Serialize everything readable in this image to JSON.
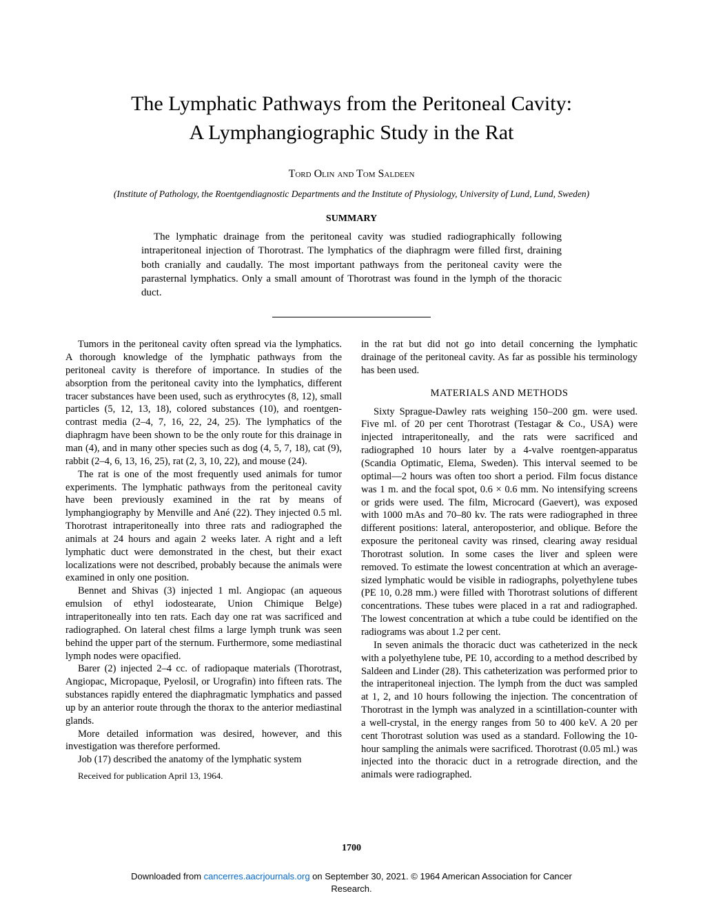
{
  "title_line1": "The Lymphatic Pathways from the Peritoneal Cavity:",
  "title_line2": "A Lymphangiographic Study in the Rat",
  "authors": "Tord Olin and Tom Saldeen",
  "affiliation": "(Institute of Pathology, the Roentgendiagnostic Departments and the Institute of Physiology, University of Lund, Lund, Sweden)",
  "summary_heading": "SUMMARY",
  "summary_text": "The lymphatic drainage from the peritoneal cavity was studied radiographically following intraperitoneal injection of Thorotrast. The lymphatics of the diaphragm were filled first, draining both cranially and caudally. The most important pathways from the peritoneal cavity were the parasternal lymphatics. Only a small amount of Thorotrast was found in the lymph of the thoracic duct.",
  "left_column": {
    "p1": "Tumors in the peritoneal cavity often spread via the lymphatics. A thorough knowledge of the lymphatic pathways from the peritoneal cavity is therefore of importance. In studies of the absorption from the peritoneal cavity into the lymphatics, different tracer substances have been used, such as erythrocytes (8, 12), small particles (5, 12, 13, 18), colored substances (10), and roentgen-contrast media (2–4, 7, 16, 22, 24, 25). The lymphatics of the diaphragm have been shown to be the only route for this drainage in man (4), and in many other species such as dog (4, 5, 7, 18), cat (9), rabbit (2–4, 6, 13, 16, 25), rat (2, 3, 10, 22), and mouse (24).",
    "p2": "The rat is one of the most frequently used animals for tumor experiments. The lymphatic pathways from the peritoneal cavity have been previously examined in the rat by means of lymphangiography by Menville and Ané (22). They injected 0.5 ml. Thorotrast intraperitoneally into three rats and radiographed the animals at 24 hours and again 2 weeks later. A right and a left lymphatic duct were demonstrated in the chest, but their exact localizations were not described, probably because the animals were examined in only one position.",
    "p3": "Bennet and Shivas (3) injected 1 ml. Angiopac (an aqueous emulsion of ethyl iodostearate, Union Chimique Belge) intraperitoneally into ten rats. Each day one rat was sacrificed and radiographed. On lateral chest films a large lymph trunk was seen behind the upper part of the sternum. Furthermore, some mediastinal lymph nodes were opacified.",
    "p4": "Barer (2) injected 2–4 cc. of radiopaque materials (Thorotrast, Angiopac, Micropaque, Pyelosil, or Urografin) into fifteen rats. The substances rapidly entered the diaphragmatic lymphatics and passed up by an anterior route through the thorax to the anterior mediastinal glands.",
    "p5": "More detailed information was desired, however, and this investigation was therefore performed.",
    "p6": "Job (17) described the anatomy of the lymphatic system",
    "received": "Received for publication April 13, 1964."
  },
  "right_column": {
    "p1": "in the rat but did not go into detail concerning the lymphatic drainage of the peritoneal cavity. As far as possible his terminology has been used.",
    "section_heading": "MATERIALS AND METHODS",
    "p2": "Sixty Sprague-Dawley rats weighing 150–200 gm. were used. Five ml. of 20 per cent Thorotrast (Testagar & Co., USA) were injected intraperitoneally, and the rats were sacrificed and radiographed 10 hours later by a 4-valve roentgen-apparatus (Scandia Optimatic, Elema, Sweden). This interval seemed to be optimal—2 hours was often too short a period. Film focus distance was 1 m. and the focal spot, 0.6 × 0.6 mm. No intensifying screens or grids were used. The film, Microcard (Gaevert), was exposed with 1000 mAs and 70–80 kv. The rats were radiographed in three different positions: lateral, anteroposterior, and oblique. Before the exposure the peritoneal cavity was rinsed, clearing away residual Thorotrast solution. In some cases the liver and spleen were removed. To estimate the lowest concentration at which an average-sized lymphatic would be visible in radiographs, polyethylene tubes (PE 10, 0.28 mm.) were filled with Thorotrast solutions of different concentrations. These tubes were placed in a rat and radiographed. The lowest concentration at which a tube could be identified on the radiograms was about 1.2 per cent.",
    "p3": "In seven animals the thoracic duct was catheterized in the neck with a polyethylene tube, PE 10, according to a method described by Saldeen and Linder (28). This catheterization was performed prior to the intraperitoneal injection. The lymph from the duct was sampled at 1, 2, and 10 hours following the injection. The concentration of Thorotrast in the lymph was analyzed in a scintillation-counter with a well-crystal, in the energy ranges from 50 to 400 keV. A 20 per cent Thorotrast solution was used as a standard. Following the 10-hour sampling the animals were sacrificed. Thorotrast (0.05 ml.) was injected into the thoracic duct in a retrograde direction, and the animals were radiographed."
  },
  "page_number": "1700",
  "footer": {
    "prefix": "Downloaded from ",
    "link_text": "cancerres.aacrjournals.org",
    "middle": " on September 30, 2021. © 1964 American Association for Cancer",
    "line2": "Research."
  }
}
